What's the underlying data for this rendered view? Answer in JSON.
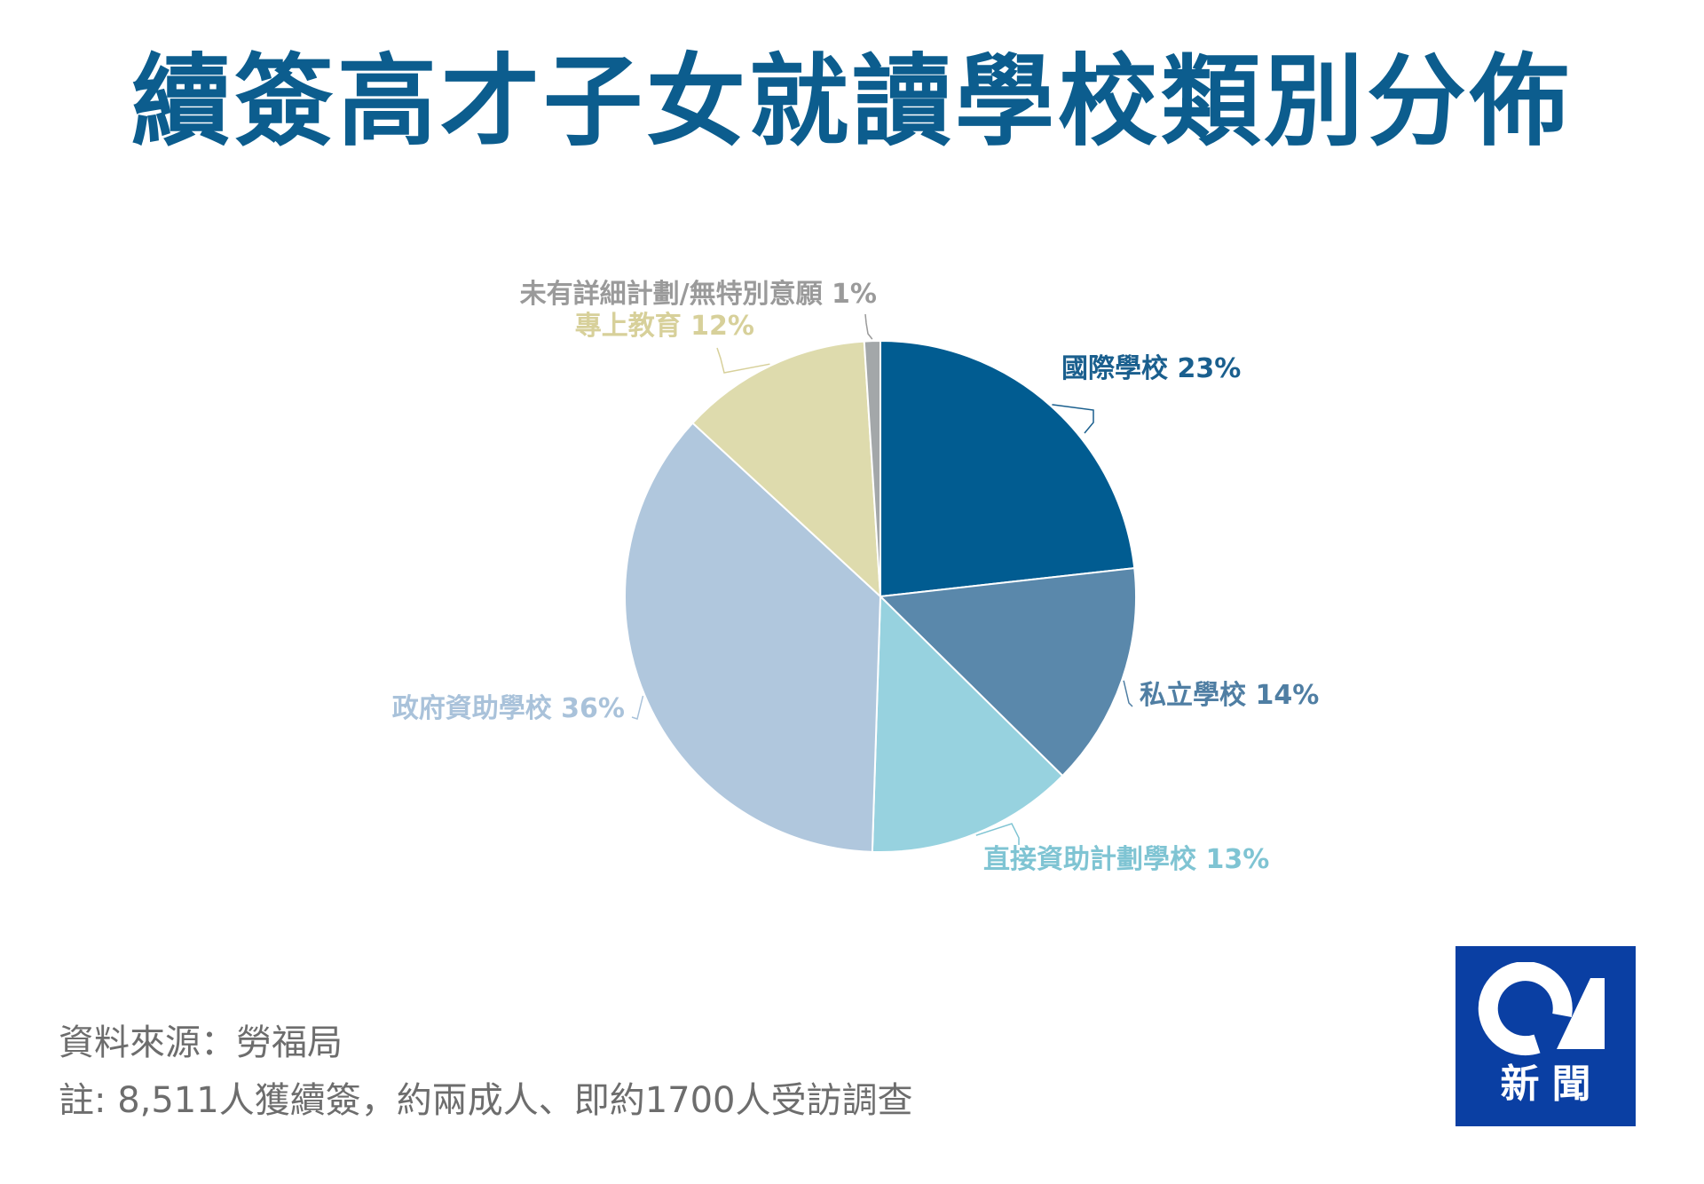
{
  "chart_data": {
    "type": "pie",
    "title": "續簽高才子女就讀學校類別分佈",
    "unit": "%",
    "slices": [
      {
        "label": "國際學校",
        "value": 23,
        "color": "#015c91"
      },
      {
        "label": "私立學校",
        "value": 14,
        "color": "#5a88ab"
      },
      {
        "label": "直接資助計劃學校",
        "value": 13,
        "color": "#97d2df"
      },
      {
        "label": "政府資助學校",
        "value": 36,
        "color": "#b0c7dd"
      },
      {
        "label": "專上教育",
        "value": 12,
        "color": "#dedbad"
      },
      {
        "label": "未有詳細計劃/無特別意願",
        "value": 1,
        "color": "#a3a7a9"
      }
    ],
    "label_colors": [
      "#1a5f8e",
      "#4f7ea3",
      "#7fc4d3",
      "#a9c2da",
      "#d7d09a",
      "#9a9a9a"
    ]
  },
  "footer": {
    "source": "資料來源：勞福局",
    "note": "註: 8,511人獲續簽，約兩成人、即約1700人受訪調查"
  },
  "logo": {
    "mark": "01",
    "text": "新聞",
    "color": "#0a3fa3"
  }
}
